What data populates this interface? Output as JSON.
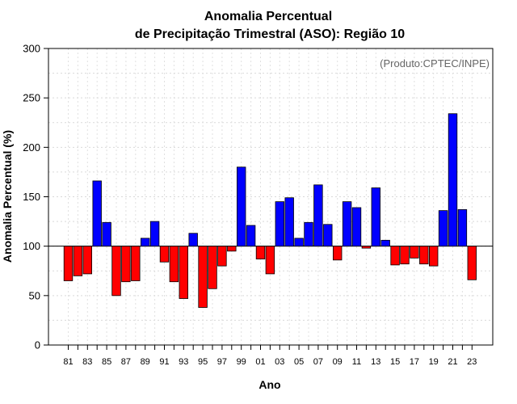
{
  "chart_data": {
    "type": "bar",
    "title_line1": "Anomalia Percentual",
    "title_line2": "de Precipitação Trimestral (ASO): Região 10",
    "xlabel": "Ano",
    "ylabel": "Anomalia Percentual (%)",
    "credit": "(Produto:CPTEC/INPE)",
    "ylim": [
      0,
      300
    ],
    "yticks": [
      "0",
      "50",
      "100",
      "150",
      "200",
      "250",
      "300"
    ],
    "baseline": 100,
    "colors": {
      "above": "#0000ff",
      "below": "#ff0000",
      "outline": "#000000"
    },
    "categories": [
      "81",
      "82",
      "83",
      "84",
      "85",
      "86",
      "87",
      "88",
      "89",
      "90",
      "91",
      "92",
      "93",
      "94",
      "95",
      "96",
      "97",
      "98",
      "99",
      "00",
      "01",
      "02",
      "03",
      "04",
      "05",
      "06",
      "07",
      "08",
      "09",
      "10",
      "11",
      "12",
      "13",
      "14",
      "15",
      "16",
      "17",
      "18",
      "19",
      "20",
      "21",
      "22",
      "23"
    ],
    "xtick_labels": [
      "81",
      "83",
      "85",
      "87",
      "89",
      "91",
      "93",
      "95",
      "97",
      "99",
      "01",
      "03",
      "05",
      "07",
      "09",
      "11",
      "13",
      "15",
      "17",
      "19",
      "21",
      "23"
    ],
    "values": [
      65,
      70,
      72,
      166,
      124,
      50,
      64,
      65,
      108,
      125,
      84,
      64,
      47,
      113,
      38,
      57,
      80,
      95,
      180,
      121,
      87,
      72,
      145,
      149,
      108,
      124,
      162,
      122,
      86,
      145,
      139,
      98,
      159,
      106,
      81,
      82,
      88,
      82,
      80,
      136,
      234,
      137,
      66
    ]
  }
}
